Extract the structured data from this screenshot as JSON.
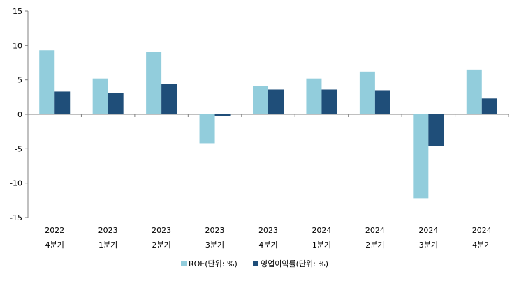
{
  "chart_data": {
    "type": "bar",
    "categories": [
      [
        "2022",
        "4분기"
      ],
      [
        "2023",
        "1분기"
      ],
      [
        "2023",
        "2분기"
      ],
      [
        "2023",
        "3분기"
      ],
      [
        "2023",
        "4분기"
      ],
      [
        "2024",
        "1분기"
      ],
      [
        "2024",
        "2분기"
      ],
      [
        "2024",
        "3분기"
      ],
      [
        "2024",
        "4분기"
      ]
    ],
    "series": [
      {
        "name": "ROE(단위: %)",
        "color": "#92CDDC",
        "values": [
          9.3,
          5.2,
          9.1,
          -4.2,
          4.1,
          5.2,
          6.2,
          -12.2,
          6.5
        ]
      },
      {
        "name": "영업이익률(단위: %)",
        "color": "#1F4E79",
        "values": [
          3.3,
          3.1,
          4.4,
          -0.3,
          3.6,
          3.6,
          3.5,
          -4.6,
          2.3
        ]
      }
    ],
    "ylim": [
      -15,
      15
    ],
    "yticks": [
      -15,
      -10,
      -5,
      0,
      5,
      10,
      15
    ],
    "legend": "bottom",
    "grid": false
  }
}
